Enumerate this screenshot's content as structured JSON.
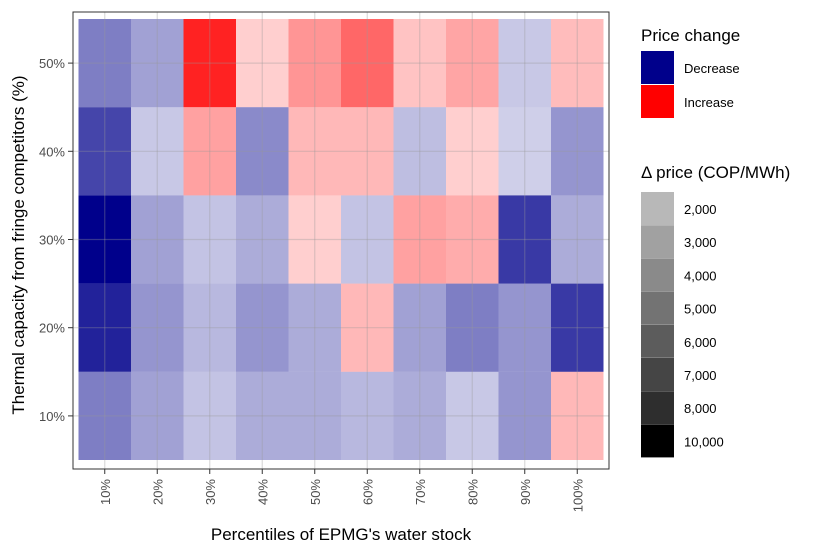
{
  "chart_data": {
    "type": "heatmap",
    "xlabel": "Percentiles of EPMG's water stock",
    "ylabel": "Thermal capacity from fringe competitors (%)",
    "x_categories": [
      "10%",
      "20%",
      "30%",
      "40%",
      "50%",
      "60%",
      "70%",
      "80%",
      "90%",
      "100%"
    ],
    "y_categories": [
      "10%",
      "20%",
      "30%",
      "40%",
      "50%"
    ],
    "grid": true,
    "legend_position": "right",
    "color_legend": {
      "title": "Price change",
      "entries": [
        {
          "label": "Decrease",
          "color": "#00008B"
        },
        {
          "label": "Increase",
          "color": "#FF0000"
        }
      ]
    },
    "alpha_legend": {
      "title": "Δ price (COP/MWh)",
      "entries": [
        "2,000",
        "3,000",
        "4,000",
        "5,000",
        "6,000",
        "7,000",
        "8,000",
        "10,000"
      ],
      "values": [
        2000,
        3000,
        4000,
        5000,
        6000,
        7000,
        8000,
        10000
      ]
    },
    "cells": {
      "50%": [
        {
          "direction": "Decrease",
          "value": 4500
        },
        {
          "direction": "Decrease",
          "value": 3000
        },
        {
          "direction": "Increase",
          "value": 8500
        },
        {
          "direction": "Increase",
          "value": 1000
        },
        {
          "direction": "Increase",
          "value": 3500
        },
        {
          "direction": "Increase",
          "value": 5500
        },
        {
          "direction": "Increase",
          "value": 1500
        },
        {
          "direction": "Increase",
          "value": 2800
        },
        {
          "direction": "Decrease",
          "value": 1300
        },
        {
          "direction": "Increase",
          "value": 1800
        }
      ],
      "40%": [
        {
          "direction": "Decrease",
          "value": 7000
        },
        {
          "direction": "Decrease",
          "value": 1300
        },
        {
          "direction": "Increase",
          "value": 3000
        },
        {
          "direction": "Decrease",
          "value": 4000
        },
        {
          "direction": "Increase",
          "value": 2000
        },
        {
          "direction": "Increase",
          "value": 2000
        },
        {
          "direction": "Decrease",
          "value": 1700
        },
        {
          "direction": "Increase",
          "value": 1000
        },
        {
          "direction": "Decrease",
          "value": 1000
        },
        {
          "direction": "Decrease",
          "value": 3500
        }
      ],
      "30%": [
        {
          "direction": "Decrease",
          "value": 10000
        },
        {
          "direction": "Decrease",
          "value": 3000
        },
        {
          "direction": "Decrease",
          "value": 1500
        },
        {
          "direction": "Decrease",
          "value": 2500
        },
        {
          "direction": "Increase",
          "value": 1000
        },
        {
          "direction": "Decrease",
          "value": 1500
        },
        {
          "direction": "Increase",
          "value": 3000
        },
        {
          "direction": "Increase",
          "value": 2500
        },
        {
          "direction": "Decrease",
          "value": 7500
        },
        {
          "direction": "Decrease",
          "value": 2500
        }
      ],
      "20%": [
        {
          "direction": "Decrease",
          "value": 8500
        },
        {
          "direction": "Decrease",
          "value": 3500
        },
        {
          "direction": "Decrease",
          "value": 2000
        },
        {
          "direction": "Decrease",
          "value": 3500
        },
        {
          "direction": "Decrease",
          "value": 2500
        },
        {
          "direction": "Increase",
          "value": 2000
        },
        {
          "direction": "Decrease",
          "value": 3000
        },
        {
          "direction": "Decrease",
          "value": 4500
        },
        {
          "direction": "Decrease",
          "value": 3500
        },
        {
          "direction": "Decrease",
          "value": 7500
        }
      ],
      "10%": [
        {
          "direction": "Decrease",
          "value": 4500
        },
        {
          "direction": "Decrease",
          "value": 3000
        },
        {
          "direction": "Decrease",
          "value": 1500
        },
        {
          "direction": "Decrease",
          "value": 2500
        },
        {
          "direction": "Decrease",
          "value": 2500
        },
        {
          "direction": "Decrease",
          "value": 2000
        },
        {
          "direction": "Decrease",
          "value": 2500
        },
        {
          "direction": "Decrease",
          "value": 1300
        },
        {
          "direction": "Decrease",
          "value": 3500
        },
        {
          "direction": "Increase",
          "value": 2000
        }
      ]
    }
  }
}
